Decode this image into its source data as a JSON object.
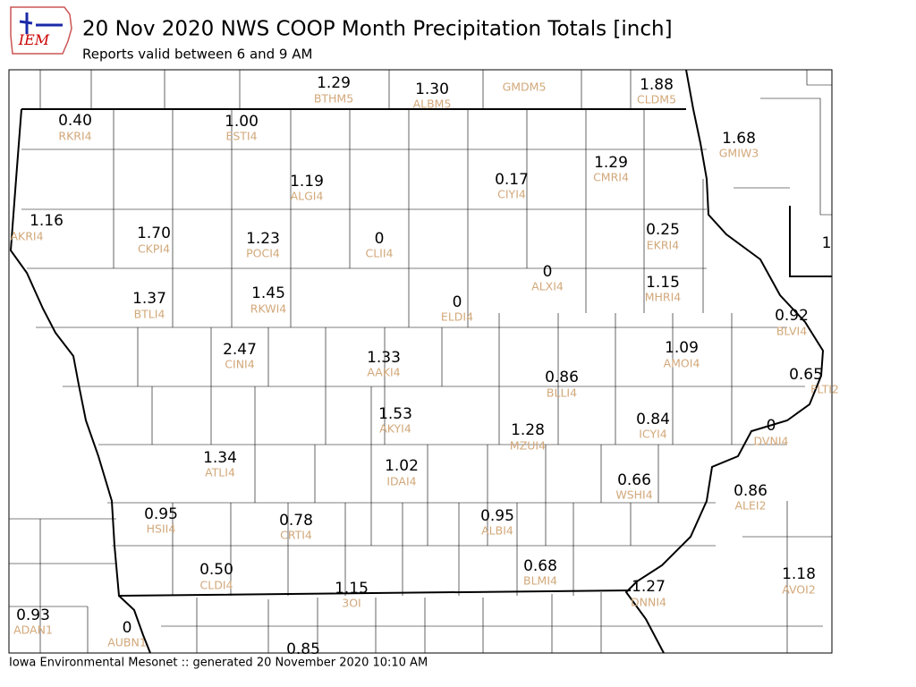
{
  "header": {
    "logo": "IEM",
    "title": "20 Nov 2020 NWS COOP Month Precipitation Totals [inch]",
    "subtitle": "Reports valid between 6 and 9 AM"
  },
  "stations": [
    {
      "value": "1.29",
      "id": "BTHM5"
    },
    {
      "value": "1.30",
      "id": "ALBM5"
    },
    {
      "id": "GMDM5"
    },
    {
      "value": "1.88",
      "id": "CLDM5"
    },
    {
      "value": "0.40",
      "id": "RKRI4"
    },
    {
      "value": "1.00",
      "id": "ESTI4"
    },
    {
      "value": "1.68",
      "id": "GMIW3"
    },
    {
      "value": "1.19",
      "id": "ALGI4"
    },
    {
      "value": "0.17",
      "id": "CIYI4"
    },
    {
      "value": "1.29",
      "id": "CMRI4"
    },
    {
      "value": "1.16",
      "id": "AKRI4"
    },
    {
      "value": "1.70",
      "id": "CKPI4"
    },
    {
      "value": "1.23",
      "id": "POCI4"
    },
    {
      "value": "0",
      "id": "CLII4"
    },
    {
      "value": "0.25",
      "id": "EKRI4"
    },
    {
      "value": "1"
    },
    {
      "value": "0",
      "id": "ALXI4"
    },
    {
      "value": "1.15",
      "id": "MHRI4"
    },
    {
      "value": "1.37",
      "id": "BTLI4"
    },
    {
      "value": "1.45",
      "id": "RKWI4"
    },
    {
      "value": "0",
      "id": "ELDI4"
    },
    {
      "value": "0.92",
      "id": "BLVI4"
    },
    {
      "value": "2.47",
      "id": "CINI4"
    },
    {
      "value": "1.33",
      "id": "AAKI4"
    },
    {
      "value": "1.09",
      "id": "AMOI4"
    },
    {
      "value": "0.86",
      "id": "BLLI4"
    },
    {
      "value": "0.65",
      "id": "FLTI2"
    },
    {
      "value": "1.53",
      "id": "AKYI4"
    },
    {
      "value": "0.84",
      "id": "ICYI4"
    },
    {
      "value": "0",
      "id": "DVNI4"
    },
    {
      "value": "1.28",
      "id": "MZUI4"
    },
    {
      "value": "1.34",
      "id": "ATLI4"
    },
    {
      "value": "1.02",
      "id": "IDAI4"
    },
    {
      "value": "0.66",
      "id": "WSHI4"
    },
    {
      "value": "0.86",
      "id": "ALEI2"
    },
    {
      "value": "0.95",
      "id": "HSII4"
    },
    {
      "value": "0.78",
      "id": "CRTI4"
    },
    {
      "value": "0.95",
      "id": "ALBI4"
    },
    {
      "value": "0.50",
      "id": "CLDI4"
    },
    {
      "value": "0.68",
      "id": "BLMI4"
    },
    {
      "value": "1.18",
      "id": "AVOI2"
    },
    {
      "value": "1.15",
      "id": "3OI"
    },
    {
      "value": "1.27",
      "id": "DNNI4"
    },
    {
      "value": "0.93",
      "id": "ADAN1"
    },
    {
      "value": "0",
      "id": "AUBN1"
    },
    {
      "value": "0.85"
    }
  ],
  "footer": "Iowa Environmental Mesonet :: generated 20 November 2020 10:10 AM"
}
